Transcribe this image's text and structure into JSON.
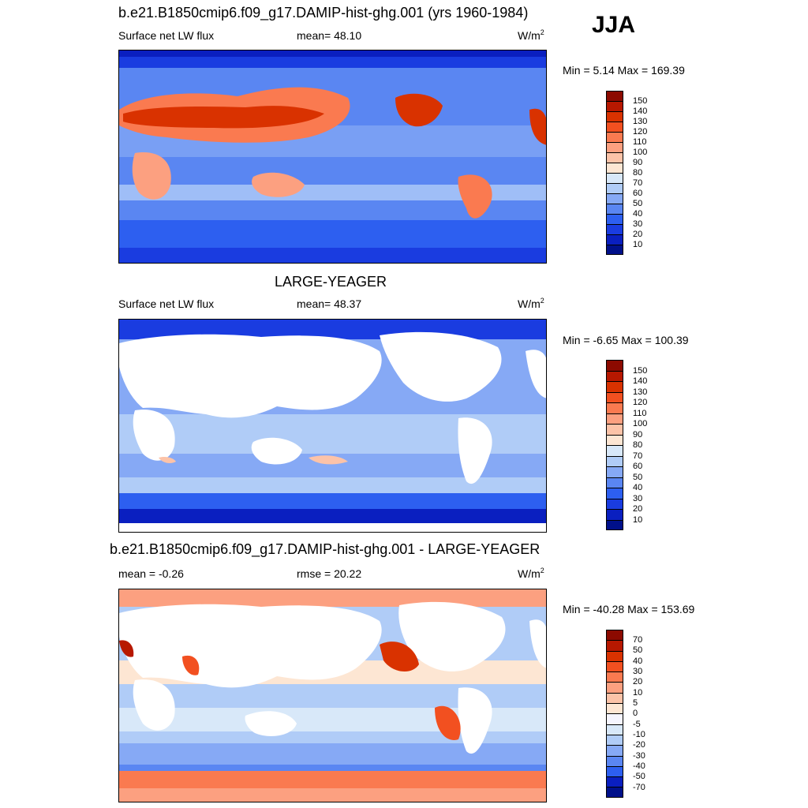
{
  "season": "JJA",
  "panels": [
    {
      "title": "b.e21.B1850cmip6.f09_g17.DAMIP-hist-ghg.001 (yrs 1960-1984)",
      "left_label": "Surface net LW flux",
      "stat_label": "mean=  48.10",
      "units": "W/m",
      "units_sup": "2",
      "minmax": "Min =   5.14 Max = 169.39",
      "colorbar_labels": [
        "150",
        "140",
        "130",
        "120",
        "110",
        "100",
        "90",
        "80",
        "70",
        "60",
        "50",
        "40",
        "30",
        "20",
        "10"
      ],
      "colors": [
        "#8c0a00",
        "#b71800",
        "#d93200",
        "#f25020",
        "#fa7a50",
        "#fca080",
        "#fcc3a8",
        "#fde6d3",
        "#d8e8f9",
        "#b0ccf7",
        "#86a9f5",
        "#5a86f2",
        "#2d5ff0",
        "#1a3ce0",
        "#0a1fc0",
        "#00108a"
      ]
    },
    {
      "title": "LARGE-YEAGER",
      "left_label": "Surface net LW flux",
      "stat_label": "mean=  48.37",
      "units": "W/m",
      "units_sup": "2",
      "minmax": "Min =  -6.65 Max = 100.39",
      "colorbar_labels": [
        "150",
        "140",
        "130",
        "120",
        "110",
        "100",
        "90",
        "80",
        "70",
        "60",
        "50",
        "40",
        "30",
        "20",
        "10"
      ],
      "colors": [
        "#8c0a00",
        "#b71800",
        "#d93200",
        "#f25020",
        "#fa7a50",
        "#fca080",
        "#fcc3a8",
        "#fde6d3",
        "#d8e8f9",
        "#b0ccf7",
        "#86a9f5",
        "#5a86f2",
        "#2d5ff0",
        "#1a3ce0",
        "#0a1fc0",
        "#00108a"
      ]
    },
    {
      "title": "b.e21.B1850cmip6.f09_g17.DAMIP-hist-ghg.001 - LARGE-YEAGER",
      "left_label": "mean =  -0.26",
      "stat_label": "rmse =  20.22",
      "units": "W/m",
      "units_sup": "2",
      "minmax": "Min = -40.28 Max = 153.69",
      "colorbar_labels": [
        "70",
        "50",
        "40",
        "30",
        "20",
        "10",
        "5",
        "0",
        "-5",
        "-10",
        "-20",
        "-30",
        "-40",
        "-50",
        "-70"
      ],
      "colors": [
        "#8c0a00",
        "#b71800",
        "#d93200",
        "#f25020",
        "#fa7a50",
        "#fca080",
        "#fcc3a8",
        "#fde6d3",
        "#f5f5ff",
        "#d8e8f9",
        "#b0ccf7",
        "#86a9f5",
        "#5a86f2",
        "#2d5ff0",
        "#0a1fc0",
        "#00108a"
      ]
    }
  ]
}
